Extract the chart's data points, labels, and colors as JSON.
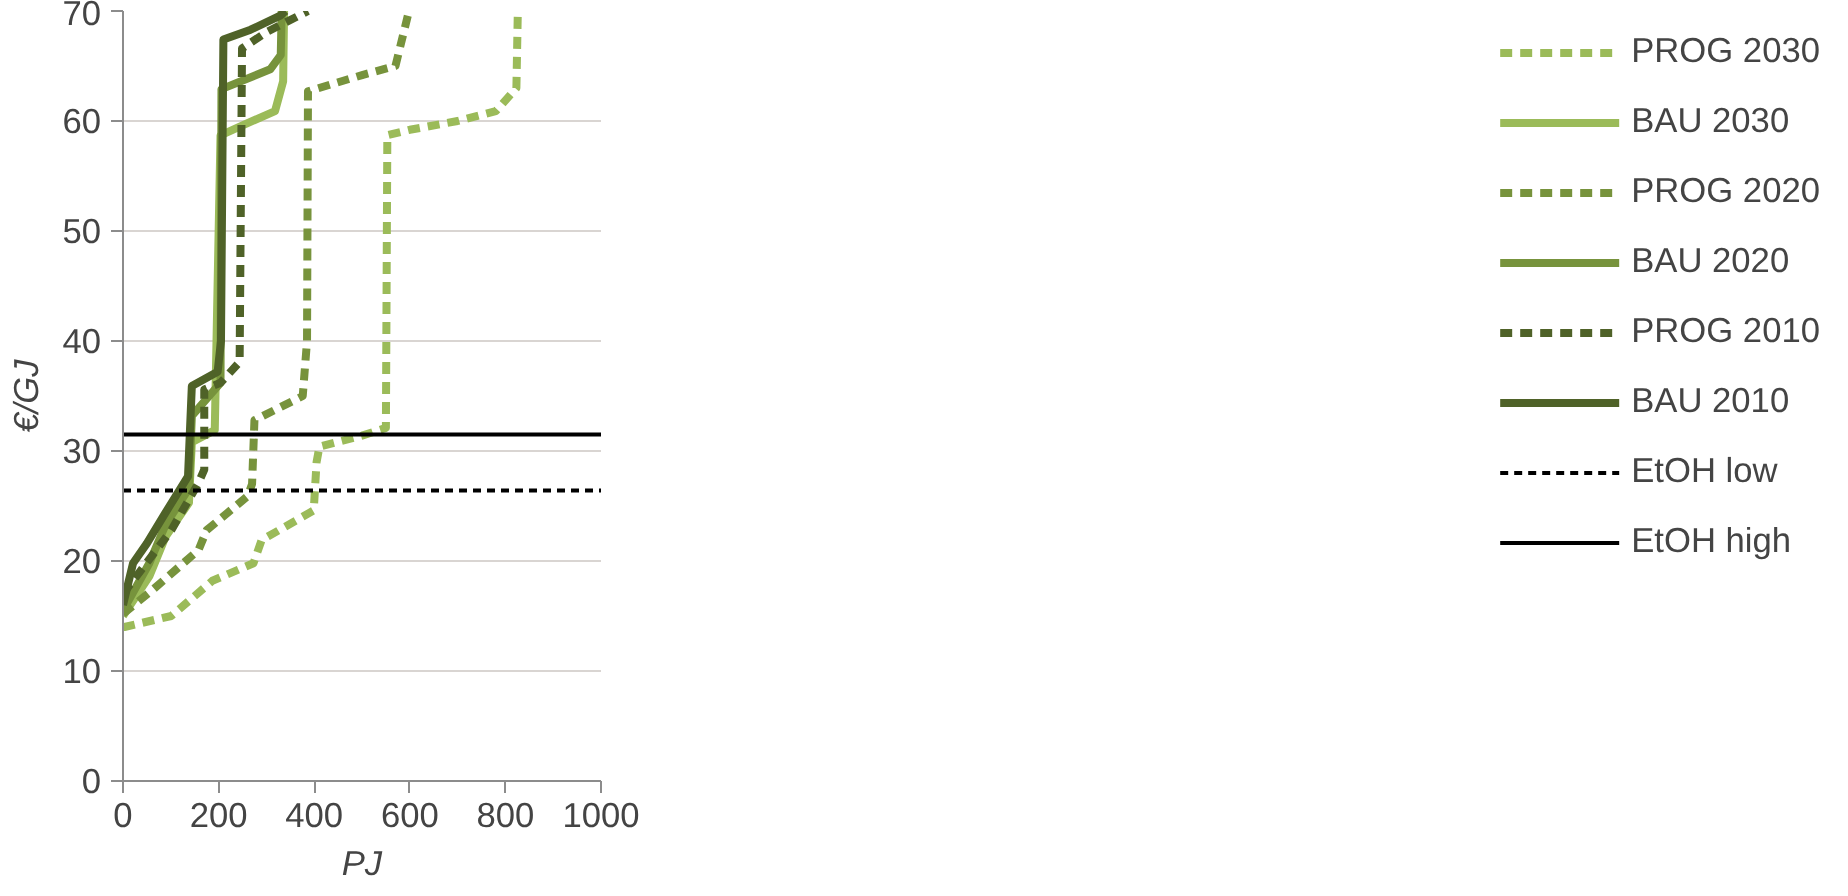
{
  "chart_data": {
    "type": "line",
    "xlabel": "PJ",
    "ylabel": "€/GJ",
    "xlim": [
      0,
      1000
    ],
    "ylim": [
      0,
      70
    ],
    "xticks": [
      0,
      200,
      400,
      600,
      800,
      1000
    ],
    "yticks": [
      0,
      10,
      20,
      30,
      40,
      50,
      60,
      70
    ],
    "grid": "y",
    "legend": "right",
    "marker": "none",
    "series": [
      {
        "name": "PROG 2030",
        "color": "#9bbb59",
        "line_style": "dashed",
        "x": [
          0,
          3,
          101,
          187,
          273,
          290,
          399,
          405,
          411,
          500,
          550,
          553,
          600,
          700,
          780,
          823,
          826
        ],
        "values": [
          14,
          14,
          15,
          18.2,
          19.8,
          21.9,
          24.6,
          29,
          30.4,
          31.4,
          32.1,
          58.7,
          59.2,
          60,
          60.9,
          63,
          70
        ]
      },
      {
        "name": "BAU 2030",
        "color": "#9bbb59",
        "line_style": "solid",
        "x": [
          0,
          55,
          89,
          138,
          144,
          192,
          204,
          250,
          318,
          335,
          337
        ],
        "values": [
          15,
          18.6,
          22.2,
          25.3,
          30.8,
          31.9,
          58.7,
          59.6,
          60.9,
          63.6,
          70
        ]
      },
      {
        "name": "PROG 2020",
        "color": "#77933c",
        "line_style": "dashed",
        "x": [
          0,
          60,
          158,
          175,
          261,
          270,
          275,
          376,
          385,
          387,
          502,
          570,
          596,
          598
        ],
        "values": [
          15.2,
          17.3,
          21,
          22.8,
          25.9,
          27,
          32.8,
          35,
          40,
          62.7,
          64.2,
          65,
          69.6,
          70
        ]
      },
      {
        "name": "BAU 2020",
        "color": "#77933c",
        "line_style": "solid",
        "x": [
          0,
          55,
          89,
          138,
          144,
          204,
          206,
          308,
          330,
          332
        ],
        "values": [
          15.5,
          19.8,
          23.3,
          26.6,
          33.2,
          36.2,
          62.9,
          64.7,
          66,
          70
        ]
      },
      {
        "name": "PROG 2010",
        "color": "#4f6228",
        "line_style": "dashed",
        "x": [
          0,
          101,
          158,
          170,
          170,
          204,
          244,
          249,
          301,
          387
        ],
        "values": [
          17,
          22.8,
          27.1,
          28.3,
          35.6,
          36.2,
          38.1,
          66.6,
          68.1,
          70
        ]
      },
      {
        "name": "BAU 2010",
        "color": "#4f6228",
        "line_style": "solid",
        "x": [
          0,
          21,
          50,
          89,
          136,
          144,
          198,
          205,
          210,
          267,
          330,
          340
        ],
        "values": [
          16,
          19.8,
          21.6,
          24.4,
          27.7,
          35.9,
          37.2,
          40,
          67.4,
          68.3,
          69.6,
          70
        ]
      },
      {
        "name": "EtOH low",
        "color": "#000000",
        "line_style": "dashed",
        "x": [
          0,
          1000
        ],
        "values": [
          26.4,
          26.4
        ]
      },
      {
        "name": "EtOH high",
        "color": "#000000",
        "line_style": "solid",
        "x": [
          0,
          1000
        ],
        "values": [
          31.5,
          31.5
        ]
      }
    ]
  }
}
